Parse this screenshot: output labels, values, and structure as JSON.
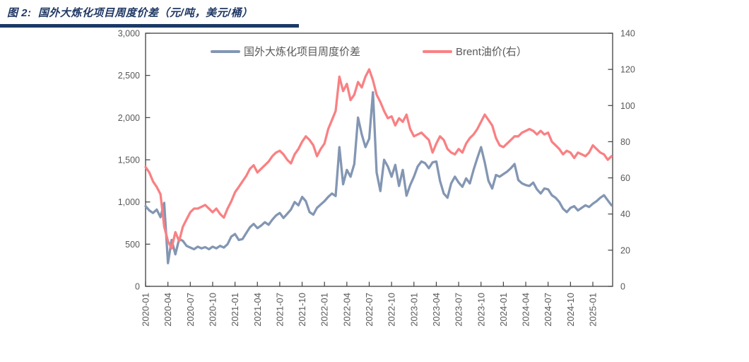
{
  "title": "图 2:  国外大炼化项目周度价差（元/吨，美元/桶）",
  "legend": [
    {
      "label": "国外大炼化项目周度价差",
      "color": "#8396B3"
    },
    {
      "label": "Brent油价(右）",
      "color": "#F98083"
    }
  ],
  "colors": {
    "title_text": "#1F3864",
    "title_rule": "#1A3A66",
    "axis_line": "#3F3F3F",
    "tick_text": "#595959",
    "legend_text": "#595959",
    "background": "#FFFFFF",
    "series_spread": "#8396B3",
    "series_brent": "#F98083"
  },
  "chart_data": {
    "type": "line",
    "title": "国外大炼化项目周度价差（元/吨，美元/桶）",
    "xlabel": "",
    "ylabel_left": "元/吨",
    "ylabel_right": "美元/桶",
    "grid": false,
    "legend_position": "top",
    "x_unit": "months since 2020-01 (fractional, 2 samples per month, weekly data)",
    "x_start": 0,
    "x_step": 0.5,
    "x_tick_step_months": 3,
    "x_tick_labels": [
      "2020-01",
      "2020-04",
      "2020-07",
      "2020-10",
      "2021-01",
      "2021-04",
      "2021-07",
      "2021-10",
      "2022-01",
      "2022-04",
      "2022-07",
      "2022-10",
      "2023-01",
      "2023-04",
      "2023-07",
      "2023-10",
      "2024-01",
      "2024-04",
      "2024-07",
      "2024-10",
      "2025-01"
    ],
    "left_axis": {
      "min": 0,
      "max": 3000,
      "ticks": [
        "0",
        "500",
        "1,000",
        "1,500",
        "2,000",
        "2,500",
        "3,000"
      ]
    },
    "right_axis": {
      "min": 0,
      "max": 140,
      "ticks": [
        "0",
        "20",
        "40",
        "60",
        "80",
        "100",
        "120",
        "140"
      ]
    },
    "series": [
      {
        "name": "国外大炼化项目周度价差",
        "axis": "left",
        "color": "#8396B3",
        "values": [
          950,
          900,
          870,
          910,
          820,
          990,
          275,
          550,
          380,
          560,
          540,
          480,
          460,
          440,
          470,
          450,
          465,
          440,
          470,
          450,
          480,
          460,
          500,
          590,
          620,
          550,
          560,
          630,
          700,
          740,
          690,
          720,
          760,
          730,
          790,
          840,
          870,
          810,
          860,
          910,
          1000,
          960,
          1060,
          1010,
          880,
          850,
          930,
          970,
          1010,
          1060,
          1100,
          1070,
          1650,
          1210,
          1380,
          1300,
          1450,
          2000,
          1800,
          1650,
          1750,
          2300,
          1350,
          1130,
          1500,
          1420,
          1300,
          1440,
          1190,
          1380,
          1075,
          1200,
          1300,
          1420,
          1480,
          1460,
          1400,
          1470,
          1480,
          1250,
          1100,
          1050,
          1220,
          1300,
          1230,
          1180,
          1280,
          1220,
          1380,
          1520,
          1650,
          1470,
          1250,
          1160,
          1320,
          1300,
          1330,
          1360,
          1400,
          1450,
          1260,
          1220,
          1200,
          1190,
          1230,
          1150,
          1100,
          1160,
          1150,
          1080,
          1050,
          1000,
          920,
          880,
          930,
          950,
          900,
          930,
          960,
          940,
          980,
          1010,
          1050,
          1080,
          1020,
          960
        ]
      },
      {
        "name": "Brent油价(右）",
        "axis": "right",
        "color": "#F98083",
        "values": [
          66,
          63,
          58,
          55,
          51,
          33,
          25,
          21,
          30,
          25,
          33,
          37,
          41,
          43,
          43,
          44,
          45,
          43,
          41,
          43,
          40,
          38,
          43,
          47,
          52,
          55,
          58,
          61,
          65,
          67,
          63,
          65,
          67,
          69,
          72,
          74,
          75,
          73,
          70,
          68,
          73,
          76,
          80,
          83,
          81,
          78,
          72,
          76,
          79,
          87,
          92,
          97,
          116,
          108,
          112,
          103,
          106,
          113,
          110,
          116,
          120,
          114,
          106,
          102,
          97,
          93,
          94,
          89,
          93,
          91,
          95,
          87,
          83,
          84,
          85,
          83,
          81,
          74,
          79,
          83,
          81,
          76,
          74,
          73,
          76,
          74,
          79,
          82,
          84,
          87,
          91,
          95,
          92,
          89,
          82,
          78,
          77,
          79,
          81,
          83,
          83,
          85,
          86,
          87,
          86,
          84,
          86,
          84,
          85,
          80,
          78,
          76,
          73,
          75,
          74,
          71,
          74,
          73,
          72,
          74,
          78,
          76,
          74,
          73,
          70,
          72
        ]
      }
    ]
  }
}
